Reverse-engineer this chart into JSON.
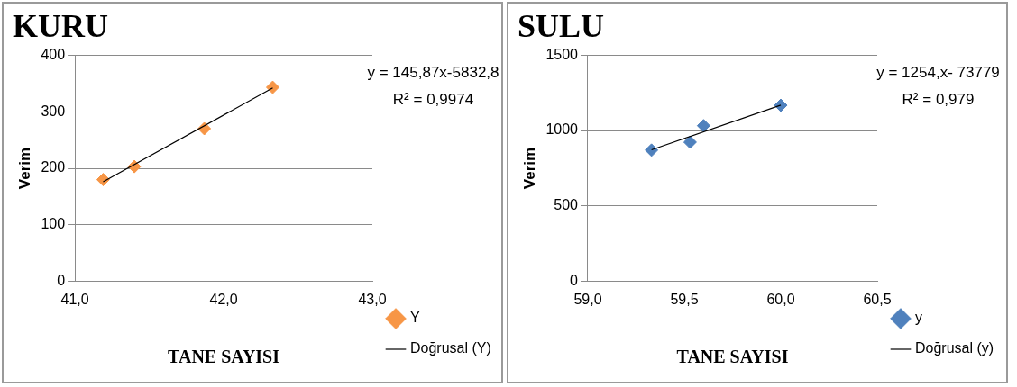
{
  "chart_data": [
    {
      "type": "scatter",
      "title": "KURU",
      "xlabel": "TANE SAYISI",
      "ylabel": "Verim",
      "xlim": [
        41,
        43
      ],
      "xticks": [
        {
          "value": 41,
          "label": "41,0"
        },
        {
          "value": 42,
          "label": "42,0"
        },
        {
          "value": 43,
          "label": "43,0"
        }
      ],
      "ylim": [
        0,
        400
      ],
      "yticks": [
        0,
        100,
        200,
        300,
        400
      ],
      "grid": "y",
      "legend": "right",
      "annotations": [
        "y = 145,87x-5832,8",
        "R² = 0,9974"
      ],
      "series": [
        {
          "name": "Y",
          "color": "#f79646",
          "marker": "diamond",
          "x": [
            41.19,
            41.4,
            41.87,
            42.33
          ],
          "values": [
            180,
            203,
            270,
            343
          ]
        },
        {
          "name": "Doğrusal (Y)",
          "type": "line",
          "color": "#000000",
          "marker": "none",
          "x": [
            41.19,
            42.33
          ],
          "values": [
            176,
            342
          ]
        }
      ]
    },
    {
      "type": "scatter",
      "title": "SULU",
      "xlabel": "TANE SAYISI",
      "ylabel": "Verim",
      "xlim": [
        59,
        60.5
      ],
      "xticks": [
        {
          "value": 59,
          "label": "59,0"
        },
        {
          "value": 59.5,
          "label": "59,5"
        },
        {
          "value": 60,
          "label": "60,0"
        },
        {
          "value": 60.5,
          "label": "60,5"
        }
      ],
      "ylim": [
        0,
        1500
      ],
      "yticks": [
        0,
        500,
        1000,
        1500
      ],
      "grid": "y",
      "legend": "right",
      "annotations": [
        "y = 1254,x- 73779",
        "R² = 0,979"
      ],
      "series": [
        {
          "name": "y",
          "color": "#4f81bd",
          "marker": "diamond",
          "x": [
            59.33,
            59.53,
            59.6,
            60.0
          ],
          "values": [
            870,
            923,
            1032,
            1167
          ]
        },
        {
          "name": "Doğrusal (y)",
          "type": "line",
          "color": "#000000",
          "marker": "none",
          "x": [
            59.33,
            60.0
          ],
          "values": [
            872,
            1168
          ]
        }
      ]
    }
  ]
}
